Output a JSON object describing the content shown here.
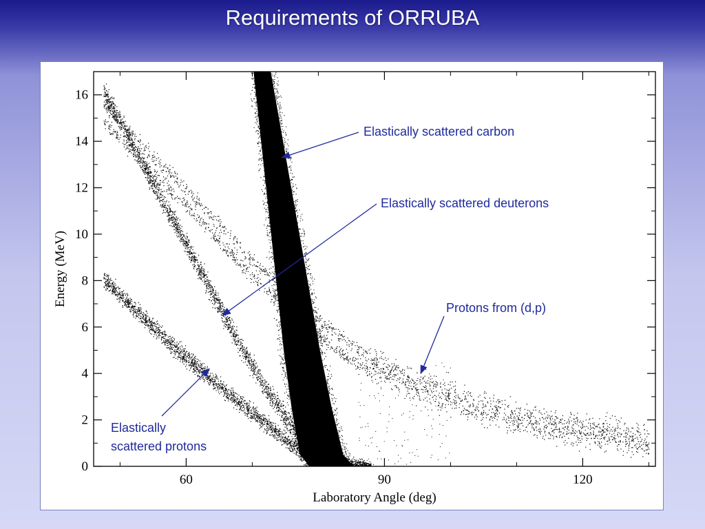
{
  "slide": {
    "title": "Requirements of ORRUBA"
  },
  "chart_data": {
    "type": "scatter",
    "xlabel": "Laboratory Angle (deg)",
    "ylabel": "Energy (MeV)",
    "xlim": [
      46,
      131
    ],
    "ylim": [
      0,
      17
    ],
    "x_ticks": [
      60,
      90,
      120
    ],
    "y_ticks": [
      0,
      2,
      4,
      6,
      8,
      10,
      12,
      14,
      16
    ],
    "grid": false,
    "series": [
      {
        "name": "Elastically scattered carbon",
        "points": [
          [
            71.5,
            17
          ],
          [
            73,
            14
          ],
          [
            74.5,
            11
          ],
          [
            76,
            8
          ],
          [
            77.5,
            5
          ],
          [
            79,
            2.5
          ],
          [
            80.5,
            0.5
          ],
          [
            82,
            0
          ]
        ]
      },
      {
        "name": "Elastically scattered deuterons",
        "points": [
          [
            47.5,
            16.1
          ],
          [
            52,
            13.8
          ],
          [
            56,
            11.6
          ],
          [
            60,
            9.6
          ],
          [
            64,
            7.4
          ],
          [
            68,
            5.3
          ],
          [
            72,
            3.4
          ],
          [
            76,
            1.7
          ],
          [
            79,
            0.5
          ]
        ]
      },
      {
        "name": "Protons from (d,p)",
        "points": [
          [
            47.5,
            15.2
          ],
          [
            55,
            13.0
          ],
          [
            62,
            11.0
          ],
          [
            70,
            8.5
          ],
          [
            78,
            6.4
          ],
          [
            86,
            4.7
          ],
          [
            94,
            3.6
          ],
          [
            104,
            2.6
          ],
          [
            114,
            1.8
          ],
          [
            124,
            1.4
          ],
          [
            130,
            1.1
          ]
        ]
      },
      {
        "name": "Elastically scattered protons",
        "points": [
          [
            47.5,
            8.1
          ],
          [
            52,
            6.8
          ],
          [
            58,
            5.2
          ],
          [
            64,
            3.7
          ],
          [
            70,
            2.3
          ],
          [
            74,
            1.4
          ],
          [
            78,
            0.5
          ]
        ]
      }
    ],
    "annotations": [
      {
        "text": "Elastically scattered carbon",
        "arrow_to": [
          74.5,
          13.3
        ]
      },
      {
        "text": "Elastically scattered deuterons",
        "arrow_to": [
          65.5,
          6.5
        ]
      },
      {
        "text": "Protons from (d,p)",
        "arrow_to": [
          95.5,
          4.0
        ]
      },
      {
        "text": [
          "Elastically",
          "scattered protons"
        ],
        "arrow_to": [
          63.5,
          4.2
        ]
      }
    ]
  }
}
